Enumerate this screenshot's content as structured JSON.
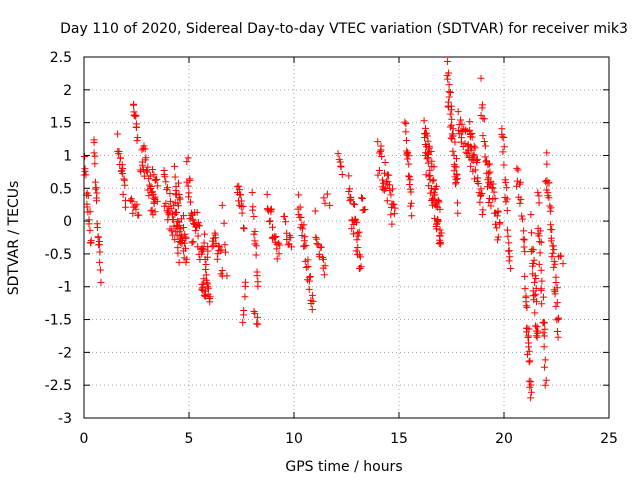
{
  "chart_data": {
    "type": "scatter",
    "title": "Day 110 of 2020, Sidereal Day-to-day VTEC variation (SDTVAR) for receiver mik3",
    "xlabel": "GPS time / hours",
    "ylabel": "SDTVAR / TECUs",
    "xlim": [
      0,
      25
    ],
    "ylim": [
      -3,
      2.5
    ],
    "xticks": [
      0,
      5,
      10,
      15,
      20,
      25
    ],
    "yticks": [
      -3,
      -2.5,
      -2,
      -1.5,
      -1,
      -0.5,
      0,
      0.5,
      1,
      1.5,
      2,
      2.5
    ],
    "xtick_labels": [
      "0",
      "5",
      "10",
      "15",
      "20",
      "25"
    ],
    "ytick_labels": [
      "-3",
      "-2.5",
      "-2",
      "-1.5",
      "-1",
      "-0.5",
      "0",
      "0.5",
      "1",
      "1.5",
      "2",
      "2.5"
    ],
    "grid": true,
    "marker": "+",
    "color": "#ff0000",
    "series": [
      {
        "name": "mik3",
        "tracks": [
          {
            "t0": 0.0,
            "t1": 0.35,
            "y0": 0.8,
            "y1": -0.3,
            "n": 18,
            "spread": 0.25
          },
          {
            "t0": 0.45,
            "t1": 0.8,
            "y0": 1.25,
            "y1": -0.85,
            "n": 22,
            "spread": 0.2
          },
          {
            "t0": 1.6,
            "t1": 2.0,
            "y0": 1.1,
            "y1": 0.3,
            "n": 18,
            "spread": 0.25
          },
          {
            "t0": 2.2,
            "t1": 2.6,
            "y0": 0.25,
            "y1": 0.15,
            "n": 10,
            "spread": 0.1
          },
          {
            "t0": 2.35,
            "t1": 2.55,
            "y0": 1.78,
            "y1": 1.3,
            "n": 12,
            "spread": 0.12
          },
          {
            "t0": 2.7,
            "t1": 3.5,
            "y0": 1.0,
            "y1": 0.3,
            "n": 35,
            "spread": 0.3
          },
          {
            "t0": 3.2,
            "t1": 3.4,
            "y0": 0.1,
            "y1": 0.3,
            "n": 6,
            "spread": 0.1
          },
          {
            "t0": 3.8,
            "t1": 4.6,
            "y0": 0.5,
            "y1": -0.4,
            "n": 40,
            "spread": 0.3
          },
          {
            "t0": 4.3,
            "t1": 4.9,
            "y0": 0.6,
            "y1": -0.5,
            "n": 35,
            "spread": 0.35
          },
          {
            "t0": 4.9,
            "t1": 5.2,
            "y0": 0.95,
            "y1": -0.3,
            "n": 16,
            "spread": 0.3
          },
          {
            "t0": 5.2,
            "t1": 5.9,
            "y0": 0.0,
            "y1": -0.6,
            "n": 30,
            "spread": 0.3
          },
          {
            "t0": 5.6,
            "t1": 6.0,
            "y0": -0.9,
            "y1": -1.15,
            "n": 20,
            "spread": 0.15
          },
          {
            "t0": 6.1,
            "t1": 6.6,
            "y0": -0.2,
            "y1": -0.7,
            "n": 18,
            "spread": 0.2
          },
          {
            "t0": 6.6,
            "t1": 6.8,
            "y0": 0.3,
            "y1": -0.8,
            "n": 5,
            "spread": 0.2
          },
          {
            "t0": 7.3,
            "t1": 7.6,
            "y0": 0.55,
            "y1": 0.0,
            "n": 14,
            "spread": 0.15
          },
          {
            "t0": 7.55,
            "t1": 7.7,
            "y0": -1.6,
            "y1": -0.9,
            "n": 6,
            "spread": 0.1
          },
          {
            "t0": 8.0,
            "t1": 8.3,
            "y0": 0.3,
            "y1": -1.0,
            "n": 14,
            "spread": 0.15
          },
          {
            "t0": 8.1,
            "t1": 8.3,
            "y0": -1.35,
            "y1": -1.6,
            "n": 5,
            "spread": 0.1
          },
          {
            "t0": 8.7,
            "t1": 9.3,
            "y0": 0.3,
            "y1": -0.5,
            "n": 22,
            "spread": 0.2
          },
          {
            "t0": 9.5,
            "t1": 9.9,
            "y0": 0.0,
            "y1": -0.4,
            "n": 10,
            "spread": 0.15
          },
          {
            "t0": 10.2,
            "t1": 10.9,
            "y0": 0.35,
            "y1": -1.3,
            "n": 30,
            "spread": 0.25
          },
          {
            "t0": 11.0,
            "t1": 11.5,
            "y0": 0.0,
            "y1": -0.8,
            "n": 14,
            "spread": 0.2
          },
          {
            "t0": 11.4,
            "t1": 11.7,
            "y0": 0.4,
            "y1": 0.3,
            "n": 4,
            "spread": 0.1
          },
          {
            "t0": 12.1,
            "t1": 12.3,
            "y0": 1.0,
            "y1": 0.8,
            "n": 6,
            "spread": 0.1
          },
          {
            "t0": 12.6,
            "t1": 13.2,
            "y0": 0.45,
            "y1": -0.6,
            "n": 30,
            "spread": 0.3
          },
          {
            "t0": 13.2,
            "t1": 13.4,
            "y0": 0.4,
            "y1": 0.1,
            "n": 5,
            "spread": 0.1
          },
          {
            "t0": 14.0,
            "t1": 14.8,
            "y0": 1.0,
            "y1": 0.1,
            "n": 35,
            "spread": 0.3
          },
          {
            "t0": 15.3,
            "t1": 15.6,
            "y0": 1.45,
            "y1": 0.2,
            "n": 20,
            "spread": 0.2
          },
          {
            "t0": 16.2,
            "t1": 17.0,
            "y0": 1.3,
            "y1": -0.2,
            "n": 70,
            "spread": 0.4
          },
          {
            "t0": 17.3,
            "t1": 17.8,
            "y0": 2.25,
            "y1": 0.4,
            "n": 40,
            "spread": 0.3
          },
          {
            "t0": 17.8,
            "t1": 18.6,
            "y0": 1.5,
            "y1": 1.0,
            "n": 30,
            "spread": 0.2
          },
          {
            "t0": 18.3,
            "t1": 19.0,
            "y0": 1.3,
            "y1": 0.3,
            "n": 28,
            "spread": 0.3
          },
          {
            "t0": 18.9,
            "t1": 19.3,
            "y0": 1.9,
            "y1": 0.5,
            "n": 18,
            "spread": 0.3
          },
          {
            "t0": 19.2,
            "t1": 19.8,
            "y0": 0.8,
            "y1": -0.2,
            "n": 26,
            "spread": 0.3
          },
          {
            "t0": 19.9,
            "t1": 20.3,
            "y0": 1.55,
            "y1": -0.9,
            "n": 22,
            "spread": 0.3
          },
          {
            "t0": 20.6,
            "t1": 21.0,
            "y0": 0.9,
            "y1": -0.3,
            "n": 16,
            "spread": 0.3
          },
          {
            "t0": 21.0,
            "t1": 21.3,
            "y0": -1.0,
            "y1": -2.6,
            "n": 25,
            "spread": 0.3
          },
          {
            "t0": 21.3,
            "t1": 21.6,
            "y0": -0.2,
            "y1": -1.8,
            "n": 28,
            "spread": 0.4
          },
          {
            "t0": 21.6,
            "t1": 22.0,
            "y0": 0.3,
            "y1": -2.3,
            "n": 28,
            "spread": 0.4
          },
          {
            "t0": 22.0,
            "t1": 22.6,
            "y0": 0.9,
            "y1": -1.6,
            "n": 40,
            "spread": 0.3
          },
          {
            "t0": 22.6,
            "t1": 22.8,
            "y0": -0.55,
            "y1": -0.6,
            "n": 4,
            "spread": 0.05
          }
        ]
      }
    ]
  }
}
